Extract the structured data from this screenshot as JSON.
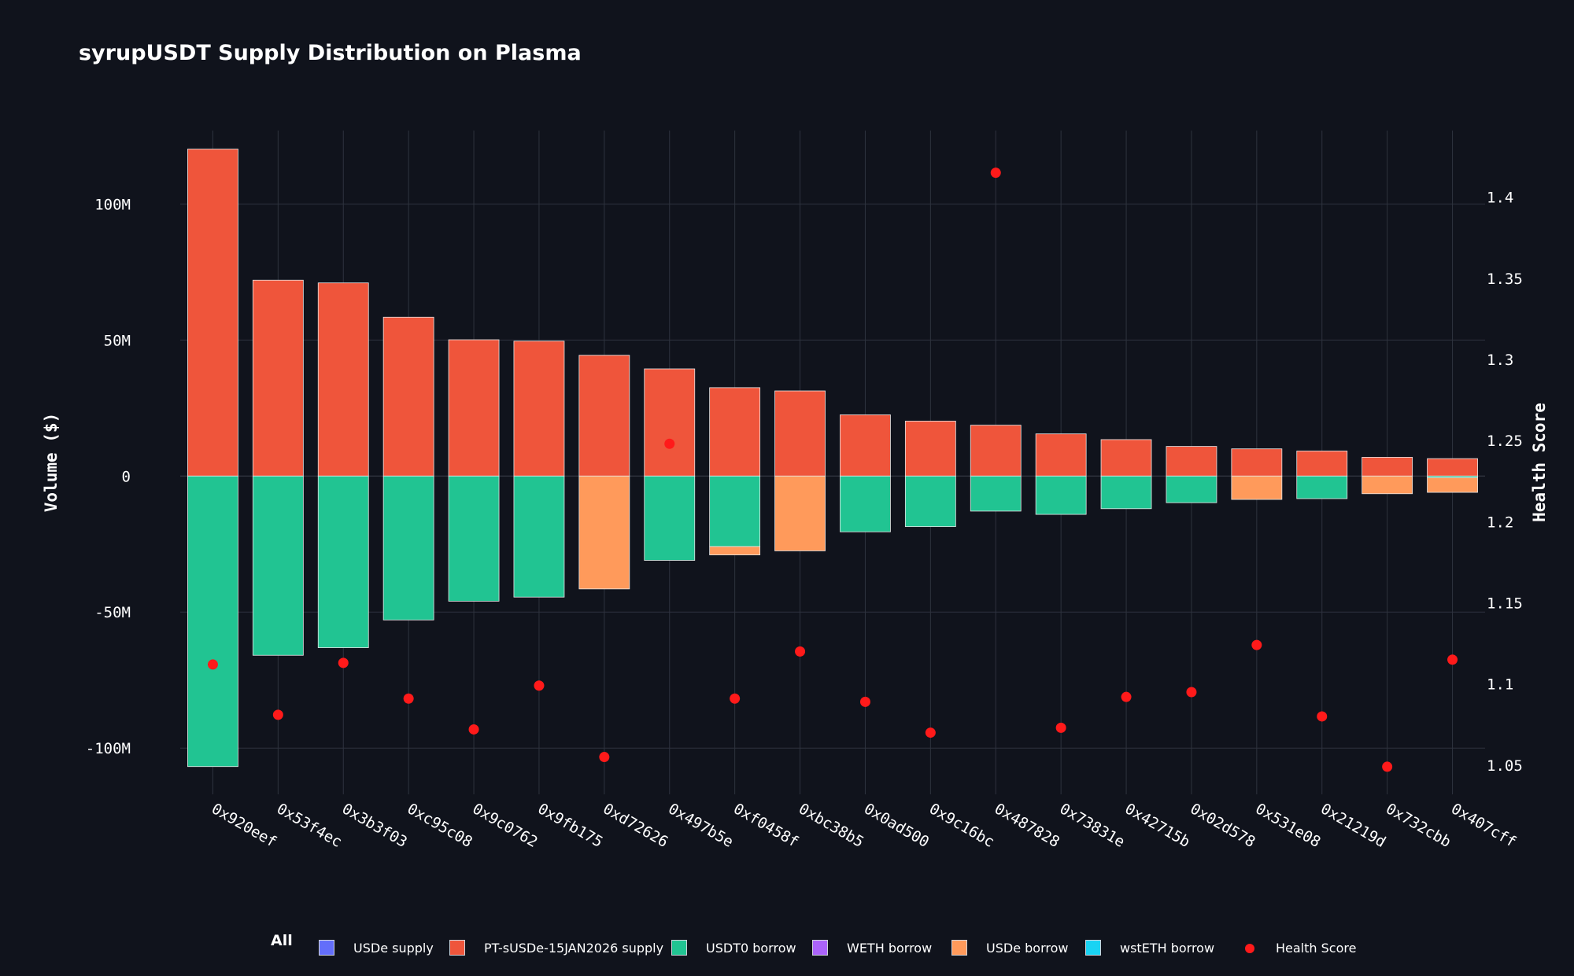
{
  "chart_data": {
    "type": "bar",
    "title": "syrupUSDT Supply Distribution on Plasma",
    "xlabel": "",
    "ylabel": "Volume ($)",
    "y2label": "Health Score",
    "ylim": [
      -117,
      127
    ],
    "y2lim": [
      1.032,
      1.441
    ],
    "yticks": [
      100,
      50,
      0,
      -50,
      -100
    ],
    "ytick_labels": [
      "100M",
      "50M",
      "0",
      "-50M",
      "-100M"
    ],
    "y2ticks": [
      1.4,
      1.35,
      1.3,
      1.25,
      1.2,
      1.15,
      1.1,
      1.05
    ],
    "y2tick_labels": [
      "1.4",
      "1.35",
      "1.3",
      "1.25",
      "1.2",
      "1.15",
      "1.1",
      "1.05"
    ],
    "grid": true,
    "barmode": "relative",
    "categories": [
      "0x920eef",
      "0x53f4ec",
      "0x3b3f03",
      "0xc95c08",
      "0x9c0762",
      "0x9fb175",
      "0xd72626",
      "0x497b5e",
      "0xf0458f",
      "0xbc38b5",
      "0x0ad500",
      "0x9c16bc",
      "0x487828",
      "0x73831e",
      "0x42715b",
      "0x02d578",
      "0x531e08",
      "0x21219d",
      "0x732cbb",
      "0x407cff"
    ],
    "series": [
      {
        "name": "USDe supply",
        "color": "#636efa",
        "values": [
          0,
          0,
          0,
          0,
          0,
          0,
          0,
          0,
          0,
          0,
          0,
          0,
          0,
          0,
          0,
          0,
          0,
          0,
          0,
          0
        ]
      },
      {
        "name": "PT-sUSDe-15JAN2026 supply",
        "color": "#ef553b",
        "values": [
          120.2,
          72,
          71,
          58.4,
          50.1,
          49.6,
          44.4,
          39.4,
          32.5,
          31.3,
          22.5,
          20.2,
          18.7,
          15.5,
          13.4,
          10.9,
          10,
          9.2,
          6.9,
          6.4
        ]
      },
      {
        "name": "USDT0 borrow",
        "color": "#21c492",
        "values": [
          -106.8,
          -65.9,
          -63.1,
          -52.9,
          -46,
          -44.5,
          0,
          -31,
          -25.9,
          0,
          -20.5,
          -18.6,
          -12.9,
          -14.1,
          -12,
          -9.8,
          0,
          -8.3,
          0,
          -0.6
        ]
      },
      {
        "name": "WETH borrow",
        "color": "#ab63fa",
        "values": [
          0,
          0,
          0,
          0,
          0,
          0,
          0,
          0,
          0,
          0,
          0,
          0,
          0,
          0,
          0,
          0,
          0,
          0,
          0,
          0
        ]
      },
      {
        "name": "USDe borrow",
        "color": "#ff9a5b",
        "values": [
          0,
          0,
          0,
          0,
          0,
          0,
          -41.5,
          0,
          -3.1,
          -27.5,
          0,
          0,
          0,
          0,
          0,
          0,
          -8.6,
          0,
          -6.5,
          -5.4
        ]
      },
      {
        "name": "wstETH borrow",
        "color": "#19d3f3",
        "values": [
          0,
          0,
          0,
          0,
          0,
          0,
          0,
          0,
          0,
          0,
          0,
          0,
          0,
          0,
          0,
          0,
          0,
          0,
          0,
          0
        ]
      },
      {
        "name": "Health Score",
        "color": "#ff1a1a",
        "type": "scatter",
        "axis": "y2",
        "values": [
          1.112,
          1.081,
          1.113,
          1.091,
          1.072,
          1.099,
          1.055,
          1.248,
          1.091,
          1.12,
          1.089,
          1.07,
          1.415,
          1.073,
          1.092,
          1.095,
          1.124,
          1.08,
          1.049,
          1.115
        ]
      }
    ]
  },
  "legend": {
    "all_label": "All",
    "items": [
      {
        "label": "USDe supply",
        "color": "#636efa",
        "kind": "swatch"
      },
      {
        "label": "PT-sUSDe-15JAN2026 supply",
        "color": "#ef553b",
        "kind": "swatch"
      },
      {
        "label": "USDT0 borrow",
        "color": "#21c492",
        "kind": "swatch"
      },
      {
        "label": "WETH borrow",
        "color": "#ab63fa",
        "kind": "swatch"
      },
      {
        "label": "USDe borrow",
        "color": "#ff9a5b",
        "kind": "swatch"
      },
      {
        "label": "wstETH borrow",
        "color": "#19d3f3",
        "kind": "swatch"
      },
      {
        "label": "Health Score",
        "color": "#ff1a1a",
        "kind": "dot"
      }
    ]
  }
}
